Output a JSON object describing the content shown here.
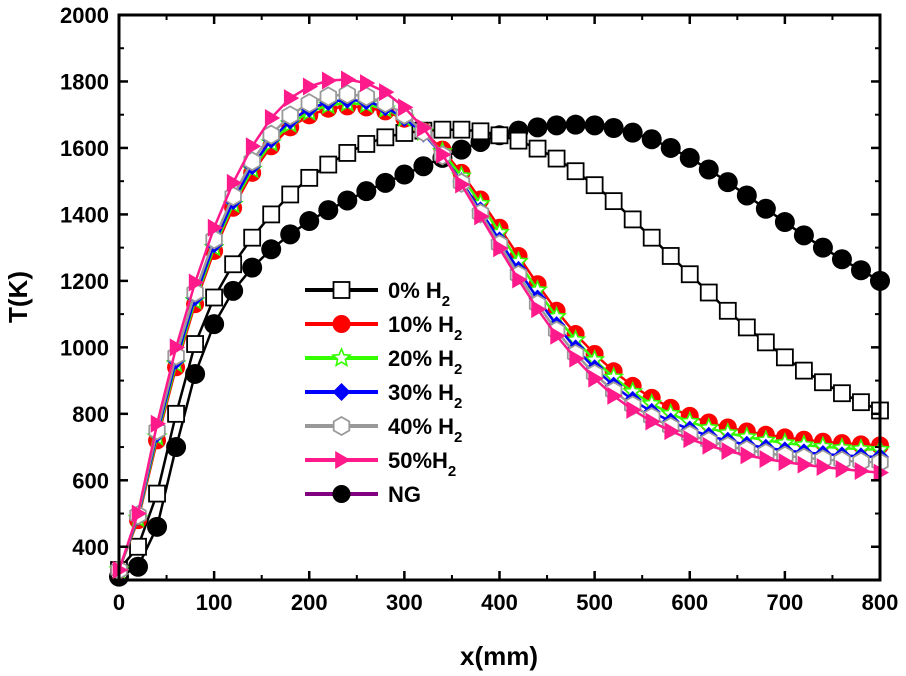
{
  "chart_data": {
    "type": "line",
    "xlabel": "x(mm)",
    "ylabel": "T(K)",
    "xlim": [
      0,
      800
    ],
    "ylim": [
      300,
      2000
    ],
    "xticks": [
      "0",
      "100",
      "200",
      "300",
      "400",
      "500",
      "600",
      "700",
      "800"
    ],
    "yticks": [
      "400",
      "600",
      "800",
      "1000",
      "1200",
      "1400",
      "1600",
      "1800",
      "2000"
    ],
    "grid": false,
    "legend_position": "center-left",
    "series": [
      {
        "name": "0% H",
        "name_sub": "2",
        "color": "#000000",
        "marker": "square-open",
        "x": [
          0,
          20,
          40,
          60,
          80,
          100,
          120,
          140,
          160,
          180,
          200,
          220,
          240,
          260,
          280,
          300,
          320,
          340,
          360,
          380,
          400,
          420,
          440,
          460,
          480,
          500,
          520,
          540,
          560,
          580,
          600,
          620,
          640,
          660,
          680,
          700,
          720,
          740,
          760,
          780,
          800
        ],
        "values": [
          330,
          400,
          560,
          800,
          1010,
          1150,
          1250,
          1330,
          1400,
          1460,
          1510,
          1550,
          1585,
          1612,
          1632,
          1645,
          1652,
          1655,
          1655,
          1650,
          1638,
          1622,
          1598,
          1568,
          1530,
          1488,
          1440,
          1385,
          1330,
          1275,
          1220,
          1165,
          1110,
          1060,
          1015,
          970,
          930,
          895,
          862,
          835,
          810
        ]
      },
      {
        "name": "10% H",
        "name_sub": "2",
        "color": "#ff0000",
        "marker": "circle",
        "x": [
          0,
          20,
          40,
          60,
          80,
          100,
          120,
          140,
          160,
          180,
          200,
          220,
          240,
          260,
          280,
          300,
          320,
          340,
          360,
          380,
          400,
          420,
          440,
          460,
          480,
          500,
          520,
          540,
          560,
          580,
          600,
          620,
          640,
          660,
          680,
          700,
          720,
          740,
          760,
          780,
          800
        ],
        "values": [
          330,
          480,
          720,
          940,
          1130,
          1290,
          1420,
          1525,
          1605,
          1662,
          1698,
          1718,
          1725,
          1722,
          1710,
          1688,
          1650,
          1595,
          1525,
          1445,
          1360,
          1275,
          1190,
          1110,
          1040,
          980,
          928,
          884,
          848,
          818,
          794,
          774,
          759,
          747,
          737,
          729,
          722,
          716,
          712,
          708,
          705
        ]
      },
      {
        "name": "20% H",
        "name_sub": "2",
        "color": "#33ff00",
        "marker": "star-open",
        "x": [
          0,
          20,
          40,
          60,
          80,
          100,
          120,
          140,
          160,
          180,
          200,
          220,
          240,
          260,
          280,
          300,
          320,
          340,
          360,
          380,
          400,
          420,
          440,
          460,
          480,
          500,
          520,
          540,
          560,
          580,
          600,
          620,
          640,
          660,
          680,
          700,
          720,
          740,
          760,
          780,
          800
        ],
        "values": [
          330,
          485,
          730,
          950,
          1140,
          1300,
          1430,
          1535,
          1615,
          1672,
          1708,
          1728,
          1735,
          1731,
          1717,
          1690,
          1648,
          1588,
          1515,
          1432,
          1345,
          1258,
          1172,
          1092,
          1022,
          962,
          910,
          866,
          830,
          800,
          776,
          757,
          742,
          730,
          720,
          712,
          706,
          701,
          697,
          694,
          692
        ]
      },
      {
        "name": "30% H",
        "name_sub": "2",
        "color": "#0000ff",
        "marker": "diamond",
        "x": [
          0,
          20,
          40,
          60,
          80,
          100,
          120,
          140,
          160,
          180,
          200,
          220,
          240,
          260,
          280,
          300,
          320,
          340,
          360,
          380,
          400,
          420,
          440,
          460,
          480,
          500,
          520,
          540,
          560,
          580,
          600,
          620,
          640,
          660,
          680,
          700,
          720,
          740,
          760,
          780,
          800
        ],
        "values": [
          330,
          490,
          740,
          960,
          1150,
          1310,
          1440,
          1545,
          1625,
          1682,
          1718,
          1738,
          1745,
          1740,
          1722,
          1690,
          1643,
          1578,
          1500,
          1412,
          1322,
          1233,
          1147,
          1067,
          997,
          937,
          885,
          842,
          806,
          777,
          753,
          734,
          719,
          707,
          698,
          690,
          684,
          679,
          675,
          672,
          670
        ]
      },
      {
        "name": "40% H",
        "name_sub": "2",
        "color": "#999999",
        "marker": "hexagon-open",
        "x": [
          0,
          20,
          40,
          60,
          80,
          100,
          120,
          140,
          160,
          180,
          200,
          220,
          240,
          260,
          280,
          300,
          320,
          340,
          360,
          380,
          400,
          420,
          440,
          460,
          480,
          500,
          520,
          540,
          560,
          580,
          600,
          620,
          640,
          660,
          680,
          700,
          720,
          740,
          760,
          780,
          800
        ],
        "values": [
          330,
          495,
          750,
          975,
          1165,
          1325,
          1455,
          1560,
          1640,
          1698,
          1735,
          1755,
          1762,
          1755,
          1735,
          1700,
          1648,
          1578,
          1495,
          1403,
          1310,
          1218,
          1130,
          1050,
          980,
          920,
          868,
          825,
          790,
          761,
          737,
          718,
          703,
          691,
          682,
          674,
          668,
          663,
          659,
          656,
          654
        ]
      },
      {
        "name": "50%H",
        "name_sub": "2",
        "color": "#ff1a8c",
        "marker": "triangle-right",
        "x": [
          0,
          20,
          40,
          60,
          80,
          100,
          120,
          140,
          160,
          180,
          200,
          220,
          240,
          260,
          280,
          300,
          320,
          340,
          360,
          380,
          400,
          420,
          440,
          460,
          480,
          500,
          520,
          540,
          560,
          580,
          600,
          620,
          640,
          660,
          680,
          700,
          720,
          740,
          760,
          780,
          800
        ],
        "values": [
          330,
          500,
          770,
          1000,
          1195,
          1360,
          1495,
          1605,
          1690,
          1750,
          1785,
          1803,
          1806,
          1795,
          1768,
          1722,
          1660,
          1580,
          1490,
          1394,
          1298,
          1204,
          1115,
          1035,
          966,
          906,
          854,
          812,
          777,
          748,
          724,
          704,
          688,
          675,
          664,
          655,
          647,
          640,
          634,
          628,
          623
        ]
      },
      {
        "name": "NG",
        "name_sub": "",
        "color": "#800080",
        "marker": "circle-black",
        "x": [
          0,
          20,
          40,
          60,
          80,
          100,
          120,
          140,
          160,
          180,
          200,
          220,
          240,
          260,
          280,
          300,
          320,
          340,
          360,
          380,
          400,
          420,
          440,
          460,
          480,
          500,
          520,
          540,
          560,
          580,
          600,
          620,
          640,
          660,
          680,
          700,
          720,
          740,
          760,
          780,
          800
        ],
        "values": [
          310,
          340,
          460,
          700,
          920,
          1070,
          1170,
          1240,
          1295,
          1340,
          1380,
          1413,
          1442,
          1470,
          1495,
          1520,
          1545,
          1570,
          1595,
          1618,
          1638,
          1652,
          1662,
          1668,
          1670,
          1668,
          1660,
          1646,
          1626,
          1600,
          1570,
          1535,
          1497,
          1457,
          1417,
          1377,
          1337,
          1300,
          1265,
          1232,
          1200
        ]
      }
    ]
  }
}
